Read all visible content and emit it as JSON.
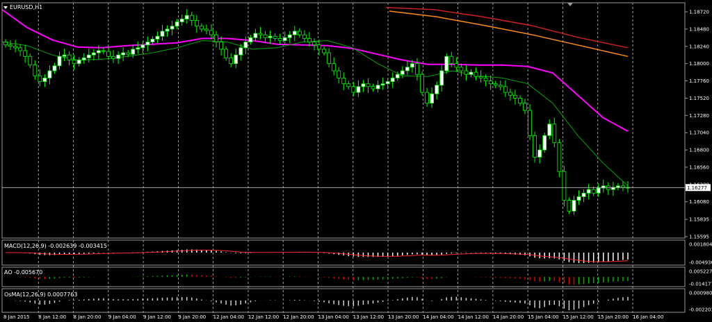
{
  "symbol": "EURUSD,H1",
  "current_price": "1.16277",
  "colors": {
    "background": "#000000",
    "grid": "#c8c8c8",
    "bull_candle": "#ffffff",
    "bear_candle": "#000000",
    "candle_wick": "#00ff00",
    "ma_slow": "#ff00ff",
    "ma_fast": "#00aa00",
    "ma_red": "#cc2222",
    "ma_orange": "#ff8c1a",
    "macd_signal": "#ff2a2a",
    "ao_up": "#00b000",
    "ao_down": "#e00000"
  },
  "main_axis": {
    "ticks": [
      "1.18720",
      "1.18480",
      "1.18240",
      "1.18000",
      "1.17760",
      "1.17520",
      "1.17280",
      "1.17040",
      "1.16800",
      "1.16560",
      "1.16320",
      "1.16080",
      "1.15835",
      "1.15595"
    ],
    "ylim": [
      1.15595,
      1.1872
    ]
  },
  "time_axis": [
    "8 Jan 2015",
    "8 Jan 12:00",
    "8 Jan 20:00",
    "9 Jan 04:00",
    "9 Jan 12:00",
    "9 Jan 20:00",
    "12 Jan 04:00",
    "12 Jan 12:00",
    "12 Jan 20:00",
    "13 Jan 04:00",
    "13 Jan 12:00",
    "13 Jan 20:00",
    "14 Jan 04:00",
    "14 Jan 12:00",
    "14 Jan 20:00",
    "15 Jan 04:00",
    "15 Jan 12:00",
    "15 Jan 20:00",
    "16 Jan 04:00"
  ],
  "indicators": {
    "macd": {
      "title": "MACD(12,26,9) -0.002639 -0.003415",
      "ticks": [
        "0.001804",
        "-0.004936"
      ]
    },
    "ao": {
      "title": "AO -0.005670",
      "ticks": [
        "0.005227",
        "-0.014177"
      ]
    },
    "osma": {
      "title": "OsMA(12,26,9) 0.0007763",
      "ticks": [
        "0.000980",
        "-0.002203"
      ]
    }
  },
  "chart_data": {
    "type": "candlestick",
    "title": "EURUSD,H1",
    "ylim": [
      1.15595,
      1.1872
    ],
    "series": [
      {
        "name": "close",
        "values": [
          1.1826,
          1.1824,
          1.1822,
          1.1818,
          1.181,
          1.1798,
          1.1783,
          1.1775,
          1.178,
          1.179,
          1.1797,
          1.181,
          1.1812,
          1.1805,
          1.18,
          1.1805,
          1.1808,
          1.1812,
          1.1815,
          1.1818,
          1.1817,
          1.181,
          1.1807,
          1.1812,
          1.1815,
          1.1813,
          1.182,
          1.1822,
          1.1826,
          1.183,
          1.1834,
          1.1838,
          1.1845,
          1.1848,
          1.1852,
          1.1858,
          1.1862,
          1.1867,
          1.186,
          1.1852,
          1.1848,
          1.1846,
          1.184,
          1.183,
          1.182,
          1.1808,
          1.18,
          1.1812,
          1.1822,
          1.183,
          1.1836,
          1.1842,
          1.184,
          1.1836,
          1.1838,
          1.1835,
          1.1832,
          1.1836,
          1.184,
          1.1845,
          1.184,
          1.1835,
          1.183,
          1.1826,
          1.182,
          1.1815,
          1.18,
          1.179,
          1.178,
          1.1772,
          1.1768,
          1.176,
          1.1768,
          1.1772,
          1.1768,
          1.1765,
          1.177,
          1.1772,
          1.1775,
          1.178,
          1.1785,
          1.179,
          1.1795,
          1.18,
          1.1785,
          1.176,
          1.1745,
          1.1758,
          1.177,
          1.179,
          1.181,
          1.18,
          1.1795,
          1.179,
          1.1785,
          1.1788,
          1.1782,
          1.178,
          1.1776,
          1.1772,
          1.177,
          1.1768,
          1.176,
          1.1756,
          1.1752,
          1.1745,
          1.1735,
          1.17,
          1.167,
          1.168,
          1.17,
          1.1716,
          1.169,
          1.165,
          1.161,
          1.1595,
          1.161,
          1.1615,
          1.162,
          1.1625,
          1.162,
          1.1627,
          1.163,
          1.1625,
          1.1628,
          1.163,
          1.1628,
          1.1627
        ]
      },
      {
        "name": "MA slow",
        "values": [
          1.1875,
          1.185,
          1.1833,
          1.1823,
          1.1822,
          1.1825,
          1.1827,
          1.1829,
          1.1835,
          1.1835,
          1.1832,
          1.1827,
          1.1826,
          1.1825,
          1.1821,
          1.1813,
          1.1805,
          1.1799,
          1.1799,
          1.1798,
          1.1798,
          1.1796,
          1.1787,
          1.1756,
          1.1725,
          1.1706
        ]
      },
      {
        "name": "MA fast",
        "values": [
          1.183,
          1.1825,
          1.1812,
          1.1805,
          1.1806,
          1.181,
          1.1815,
          1.1822,
          1.1832,
          1.183,
          1.182,
          1.1822,
          1.183,
          1.1832,
          1.1822,
          1.18,
          1.1783,
          1.1782,
          1.179,
          1.1783,
          1.178,
          1.1772,
          1.1745,
          1.17,
          1.1662,
          1.163
        ]
      },
      {
        "name": "MA red",
        "values": [
          1.1878,
          1.1875,
          1.1865,
          1.1853,
          1.1836,
          1.1822
        ]
      },
      {
        "name": "MA orange",
        "values": [
          1.1873,
          1.1865,
          1.1853,
          1.184,
          1.1825,
          1.181
        ]
      }
    ]
  }
}
